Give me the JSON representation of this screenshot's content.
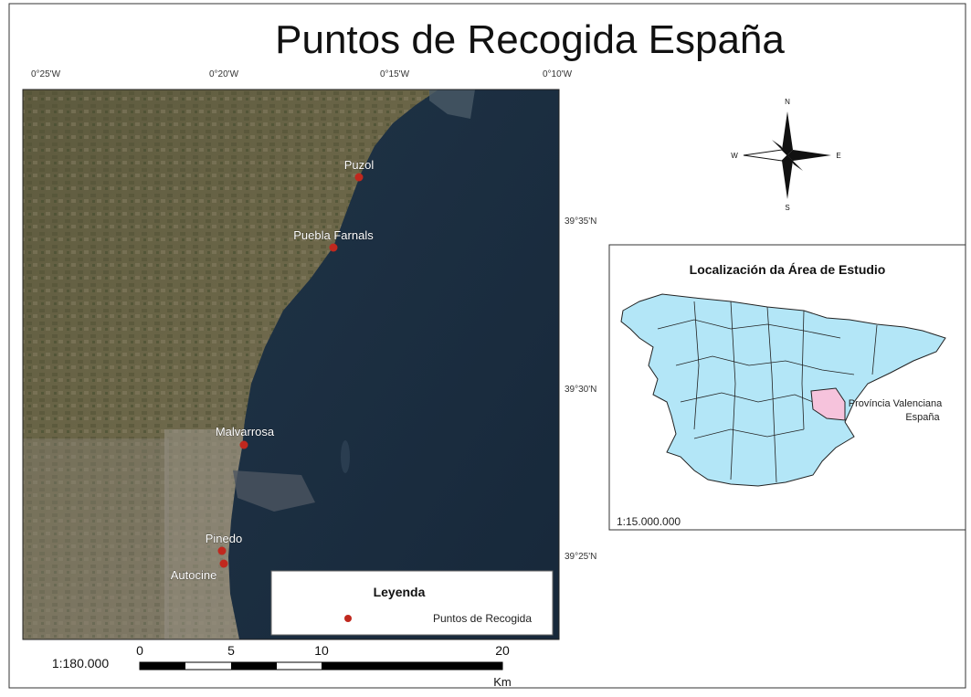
{
  "title": "Puntos de Recogida España",
  "map": {
    "longitude_labels": [
      "0°25'W",
      "0°20'W",
      "0°15'W",
      "0°10'W"
    ],
    "latitude_labels": [
      "39°35'N",
      "39°30'N",
      "39°25'N"
    ],
    "points": [
      {
        "label": "Puzol"
      },
      {
        "label": "Puebla Farnals"
      },
      {
        "label": "Malvarrosa"
      },
      {
        "label": "Pinedo"
      },
      {
        "label": "Autocine"
      }
    ]
  },
  "legend": {
    "title": "Leyenda",
    "items": [
      "Puntos de Recogida"
    ]
  },
  "scale": {
    "ratio": "1:180.000",
    "ticks": [
      0,
      5,
      10,
      20
    ],
    "unit": "Km"
  },
  "compass": {
    "north": "N",
    "south": "S",
    "east": "E",
    "west": "W"
  },
  "inset": {
    "title": "Localización da Área de Estudio",
    "label_line1": "Província Valenciana",
    "label_line2": "España",
    "scale": "1:15.000.000"
  }
}
